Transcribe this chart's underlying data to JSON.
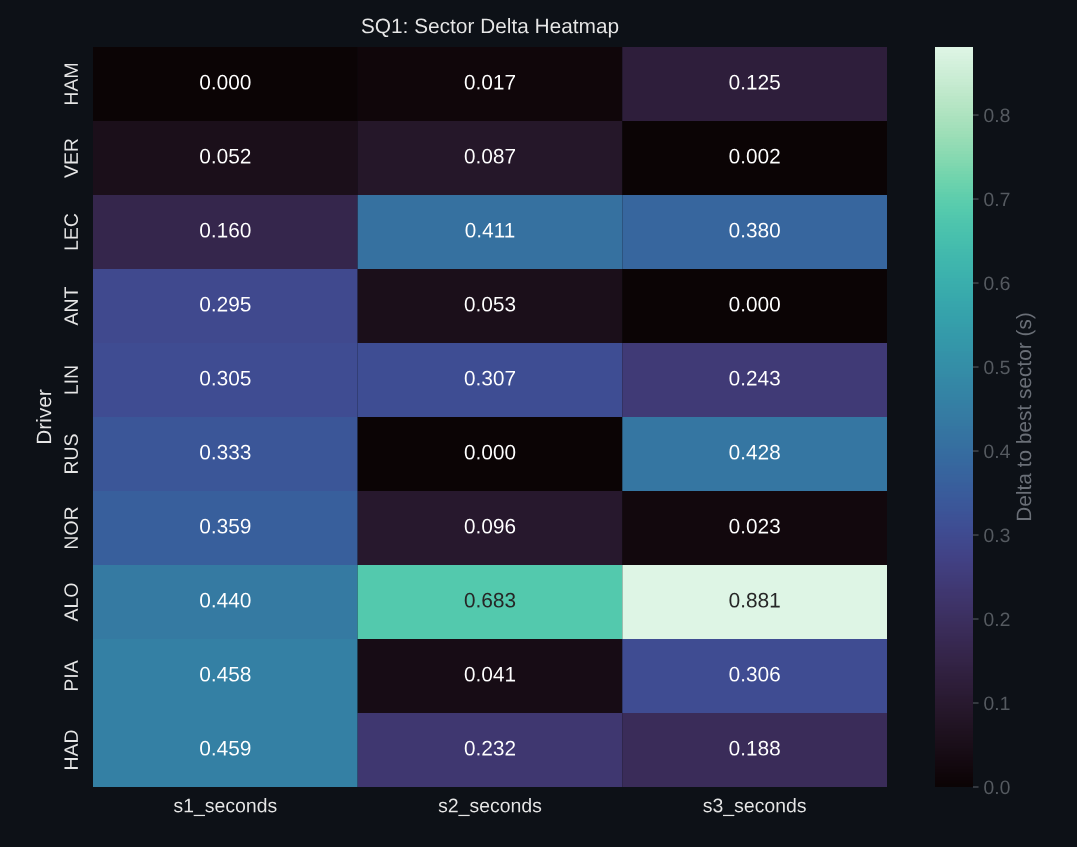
{
  "chart_data": {
    "type": "heatmap",
    "title": "SQ1: Sector Delta Heatmap",
    "ylabel": "Driver",
    "clabel": "Delta to best sector (s)",
    "categories": [
      "s1_seconds",
      "s2_seconds",
      "s3_seconds"
    ],
    "y_categories": [
      "HAM",
      "VER",
      "LEC",
      "ANT",
      "LIN",
      "RUS",
      "NOR",
      "ALO",
      "PIA",
      "HAD"
    ],
    "cells": [
      [
        0.0,
        0.017,
        0.125
      ],
      [
        0.052,
        0.087,
        0.002
      ],
      [
        0.16,
        0.411,
        0.38
      ],
      [
        0.295,
        0.053,
        0.0
      ],
      [
        0.305,
        0.307,
        0.243
      ],
      [
        0.333,
        0.0,
        0.428
      ],
      [
        0.359,
        0.096,
        0.023
      ],
      [
        0.44,
        0.683,
        0.881
      ],
      [
        0.458,
        0.041,
        0.306
      ],
      [
        0.459,
        0.232,
        0.188
      ]
    ],
    "cell_labels": [
      [
        "0.000",
        "0.017",
        "0.125"
      ],
      [
        "0.052",
        "0.087",
        "0.002"
      ],
      [
        "0.160",
        "0.411",
        "0.380"
      ],
      [
        "0.295",
        "0.053",
        "0.000"
      ],
      [
        "0.305",
        "0.307",
        "0.243"
      ],
      [
        "0.333",
        "0.000",
        "0.428"
      ],
      [
        "0.359",
        "0.096",
        "0.023"
      ],
      [
        "0.440",
        "0.683",
        "0.881"
      ],
      [
        "0.458",
        "0.041",
        "0.306"
      ],
      [
        "0.459",
        "0.232",
        "0.188"
      ]
    ],
    "clim": [
      0,
      0.881
    ],
    "cticks": [
      {
        "value": 0,
        "label": "0.0"
      },
      {
        "value": 0.1,
        "label": "0.1"
      },
      {
        "value": 0.2,
        "label": "0.2"
      },
      {
        "value": 0.3,
        "label": "0.3"
      },
      {
        "value": 0.4,
        "label": "0.4"
      },
      {
        "value": 0.5,
        "label": "0.5"
      },
      {
        "value": 0.6,
        "label": "0.6"
      },
      {
        "value": 0.7,
        "label": "0.7"
      },
      {
        "value": 0.8,
        "label": "0.8"
      }
    ],
    "grid": false
  }
}
